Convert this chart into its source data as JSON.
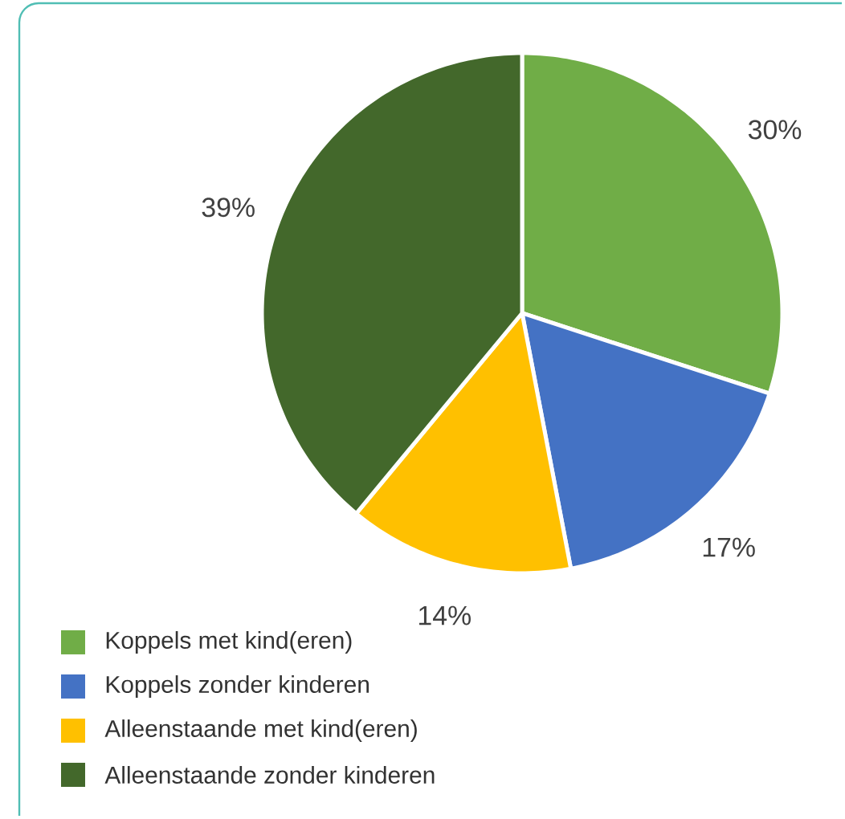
{
  "chart_data": {
    "type": "pie",
    "categories": [
      "Koppels met kind(eren)",
      "Koppels zonder kinderen",
      "Alleenstaande met kind(eren)",
      "Alleenstaande zonder kinderen"
    ],
    "values": [
      30,
      17,
      14,
      39
    ],
    "value_labels": [
      "30%",
      "17%",
      "14%",
      "39%"
    ],
    "colors": [
      "#70ad47",
      "#4472c4",
      "#ffc000",
      "#43682b"
    ],
    "legend": "bottom"
  }
}
